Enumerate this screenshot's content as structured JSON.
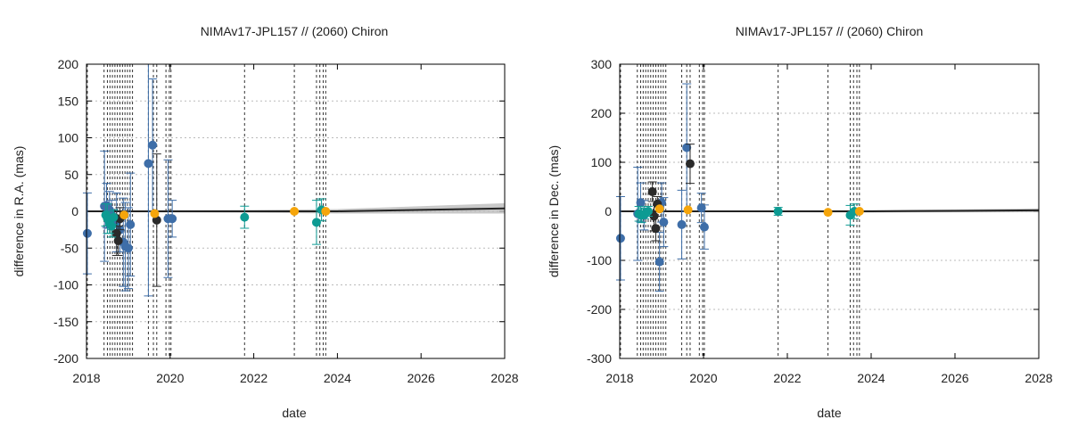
{
  "chart_data": [
    {
      "type": "scatter",
      "title": "NIMAv17-JPL157 // (2060) Chiron",
      "xlabel": "date",
      "ylabel": "difference in R.A. (mas)",
      "xlim": [
        2018,
        2028
      ],
      "ylim": [
        -200,
        200
      ],
      "x_ticks": [
        "2018",
        "2020",
        "2022",
        "2024",
        "2026",
        "2028"
      ],
      "y_ticks": [
        "-200",
        "-150",
        "-100",
        "-50",
        "0",
        "50",
        "100",
        "150",
        "200"
      ],
      "grid": "horizontal dotted",
      "vertical_reference_lines": [
        2018.02,
        2018.42,
        2018.5,
        2018.56,
        2018.62,
        2018.68,
        2018.74,
        2018.8,
        2018.86,
        2018.92,
        2018.98,
        2019.04,
        2019.1,
        2019.48,
        2019.6,
        2019.68,
        2019.9,
        2019.98,
        2020.02,
        2021.78,
        2022.97,
        2023.5,
        2023.58,
        2023.66,
        2023.72
      ],
      "series": [
        {
          "color": "#3e6ea8",
          "points": [
            [
              2018.02,
              -30,
              55
            ],
            [
              2018.43,
              7,
              75
            ],
            [
              2018.48,
              8,
              30
            ],
            [
              2018.55,
              2,
              25
            ],
            [
              2018.6,
              -5,
              20
            ],
            [
              2018.72,
              -15,
              40
            ],
            [
              2018.8,
              -25,
              30
            ],
            [
              2018.88,
              -42,
              60
            ],
            [
              2018.93,
              -48,
              60
            ],
            [
              2019.0,
              -50,
              55
            ],
            [
              2019.05,
              -18,
              70
            ],
            [
              2019.48,
              65,
              180
            ],
            [
              2019.58,
              90,
              90
            ],
            [
              2019.95,
              -10,
              80
            ],
            [
              2020.05,
              -10,
              25
            ]
          ]
        },
        {
          "color": "#2a2a2a",
          "points": [
            [
              2018.72,
              -30,
              30
            ],
            [
              2018.76,
              -40,
              20
            ],
            [
              2018.8,
              -10,
              15
            ],
            [
              2019.68,
              -12,
              90
            ]
          ]
        },
        {
          "color": "#0d9b93",
          "points": [
            [
              2018.46,
              -5,
              15
            ],
            [
              2018.5,
              -10,
              20
            ],
            [
              2018.55,
              -15,
              15
            ],
            [
              2018.6,
              -20,
              15
            ],
            [
              2018.65,
              -8,
              10
            ],
            [
              2021.78,
              -8,
              15
            ],
            [
              2023.5,
              -15,
              30
            ],
            [
              2023.62,
              2,
              15
            ]
          ]
        },
        {
          "color": "#f5a50b",
          "points": [
            [
              2018.9,
              -5,
              0
            ],
            [
              2019.63,
              -3,
              0
            ],
            [
              2022.97,
              0,
              0
            ],
            [
              2023.72,
              0,
              0
            ]
          ]
        }
      ],
      "model_line": {
        "color": "#222222",
        "band_color": "#bcbcbc",
        "values": [
          [
            2018,
            0,
            1
          ],
          [
            2020,
            0,
            1.5
          ],
          [
            2022,
            0,
            2
          ],
          [
            2024,
            0,
            3
          ],
          [
            2026,
            2,
            5
          ],
          [
            2028,
            4,
            7
          ]
        ]
      }
    },
    {
      "type": "scatter",
      "title": "NIMAv17-JPL157 // (2060) Chiron",
      "xlabel": "date",
      "ylabel": "difference in Dec. (mas)",
      "xlim": [
        2018,
        2028
      ],
      "ylim": [
        -300,
        300
      ],
      "x_ticks": [
        "2018",
        "2020",
        "2022",
        "2024",
        "2026",
        "2028"
      ],
      "y_ticks": [
        "-300",
        "-200",
        "-100",
        "0",
        "100",
        "200",
        "300"
      ],
      "grid": "horizontal dotted",
      "vertical_reference_lines": [
        2018.02,
        2018.42,
        2018.5,
        2018.56,
        2018.62,
        2018.68,
        2018.74,
        2018.8,
        2018.86,
        2018.92,
        2018.98,
        2019.04,
        2019.1,
        2019.48,
        2019.6,
        2019.68,
        2019.9,
        2019.98,
        2020.02,
        2021.78,
        2022.97,
        2023.5,
        2023.58,
        2023.66,
        2023.72
      ],
      "series": [
        {
          "color": "#3e6ea8",
          "points": [
            [
              2018.02,
              -55,
              85
            ],
            [
              2018.43,
              -5,
              95
            ],
            [
              2018.5,
              18,
              40
            ],
            [
              2018.58,
              -8,
              30
            ],
            [
              2018.95,
              -103,
              60
            ],
            [
              2019.0,
              18,
              40
            ],
            [
              2019.05,
              -22,
              50
            ],
            [
              2019.48,
              -27,
              70
            ],
            [
              2019.6,
              130,
              130
            ],
            [
              2019.95,
              7,
              30
            ],
            [
              2020.02,
              -32,
              45
            ]
          ]
        },
        {
          "color": "#2a2a2a",
          "points": [
            [
              2018.78,
              40,
              20
            ],
            [
              2018.82,
              -10,
              30
            ],
            [
              2018.86,
              -35,
              25
            ],
            [
              2018.9,
              15,
              15
            ],
            [
              2019.68,
              97,
              40
            ]
          ]
        },
        {
          "color": "#0d9b93",
          "points": [
            [
              2018.46,
              -5,
              15
            ],
            [
              2018.52,
              -8,
              15
            ],
            [
              2018.6,
              -5,
              10
            ],
            [
              2018.68,
              0,
              10
            ],
            [
              2021.78,
              0,
              8
            ],
            [
              2023.5,
              -8,
              20
            ],
            [
              2023.6,
              0,
              15
            ]
          ]
        },
        {
          "color": "#f5a50b",
          "points": [
            [
              2018.95,
              5,
              0
            ],
            [
              2019.63,
              3,
              0
            ],
            [
              2022.97,
              -2,
              0
            ],
            [
              2023.72,
              0,
              0
            ]
          ]
        }
      ],
      "model_line": {
        "color": "#222222",
        "band_color": "#bcbcbc",
        "values": [
          [
            2018,
            0,
            1
          ],
          [
            2020,
            0,
            1.5
          ],
          [
            2022,
            0,
            2
          ],
          [
            2024,
            0,
            2.5
          ],
          [
            2026,
            1,
            3
          ],
          [
            2028,
            2,
            4
          ]
        ]
      }
    }
  ]
}
